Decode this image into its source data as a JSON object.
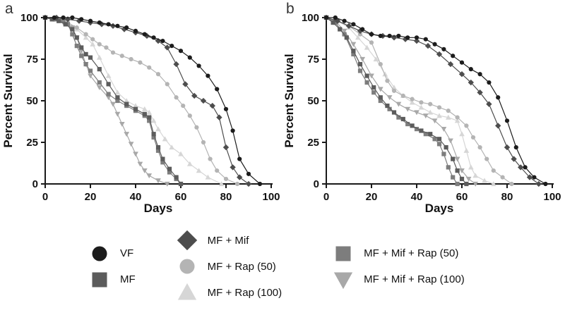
{
  "figure": {
    "panel_labels": [
      "a",
      "b"
    ]
  },
  "chart_data": [
    {
      "type": "line",
      "panel": "a",
      "xlabel": "Days",
      "ylabel": "Percent Survival",
      "xlim": [
        0,
        100
      ],
      "ylim": [
        0,
        100
      ],
      "xticks": [
        0,
        20,
        40,
        60,
        80,
        100
      ],
      "yticks": [
        0,
        25,
        50,
        75,
        100
      ],
      "grid": false,
      "series": [
        {
          "name": "VF",
          "marker": "circle",
          "color": "#1c1c1c",
          "x": [
            0,
            4,
            8,
            12,
            16,
            20,
            24,
            28,
            32,
            36,
            40,
            44,
            48,
            52,
            56,
            60,
            64,
            68,
            72,
            76,
            80,
            83,
            86,
            90,
            95
          ],
          "y": [
            100,
            100,
            100,
            100,
            99,
            98,
            97,
            96,
            95,
            94,
            92,
            90,
            88,
            86,
            83,
            80,
            76,
            71,
            65,
            57,
            45,
            32,
            15,
            6,
            0
          ]
        },
        {
          "name": "MF",
          "marker": "square",
          "color": "#5c5c5c",
          "x": [
            0,
            3,
            6,
            9,
            12,
            14,
            16,
            18,
            20,
            24,
            28,
            32,
            36,
            40,
            44,
            46,
            48,
            50,
            52,
            55,
            58,
            60
          ],
          "y": [
            100,
            99,
            98,
            96,
            93,
            88,
            82,
            78,
            76,
            69,
            60,
            52,
            48,
            45,
            42,
            40,
            30,
            22,
            15,
            9,
            4,
            0
          ]
        },
        {
          "name": "MF + Mif",
          "marker": "diamond",
          "color": "#4d4d4d",
          "x": [
            0,
            5,
            10,
            15,
            20,
            25,
            30,
            35,
            40,
            45,
            50,
            54,
            58,
            62,
            66,
            70,
            74,
            77,
            80,
            83,
            86,
            90
          ],
          "y": [
            100,
            100,
            99,
            98,
            97,
            96,
            95,
            93,
            91,
            89,
            86,
            82,
            72,
            60,
            53,
            50,
            47,
            40,
            22,
            10,
            4,
            0
          ]
        },
        {
          "name": "MF + Rap (50)",
          "marker": "circle",
          "color": "#b4b4b4",
          "x": [
            0,
            5,
            10,
            14,
            18,
            21,
            24,
            27,
            30,
            34,
            38,
            42,
            46,
            50,
            54,
            58,
            61,
            64,
            67,
            70,
            73,
            76,
            80,
            85
          ],
          "y": [
            100,
            99,
            97,
            94,
            90,
            87,
            84,
            82,
            79,
            77,
            75,
            73,
            70,
            66,
            60,
            52,
            47,
            41,
            34,
            25,
            15,
            8,
            3,
            0
          ]
        },
        {
          "name": "MF + Rap (100)",
          "marker": "triangle-up",
          "color": "#d6d6d6",
          "x": [
            0,
            5,
            10,
            14,
            18,
            21,
            24,
            28,
            32,
            36,
            40,
            44,
            46,
            48,
            50,
            53,
            56,
            60,
            64,
            68,
            72,
            78
          ],
          "y": [
            100,
            99,
            97,
            93,
            88,
            84,
            76,
            65,
            55,
            50,
            47,
            45,
            43,
            38,
            33,
            27,
            22,
            18,
            12,
            8,
            4,
            0
          ]
        },
        {
          "name": "MF + Mif + Rap (50)",
          "marker": "square",
          "color": "#7d7d7d",
          "x": [
            0,
            4,
            8,
            10,
            12,
            14,
            16,
            18,
            20,
            24,
            28,
            32,
            36,
            40,
            44,
            46,
            48,
            50,
            52,
            55,
            58,
            60
          ],
          "y": [
            100,
            99,
            98,
            96,
            90,
            83,
            77,
            72,
            68,
            61,
            54,
            50,
            47,
            44,
            41,
            38,
            28,
            20,
            13,
            7,
            3,
            0
          ]
        },
        {
          "name": "MF + Mif + Rap (100)",
          "marker": "triangle-down",
          "color": "#a8a8a8",
          "x": [
            0,
            4,
            8,
            12,
            14,
            16,
            18,
            20,
            24,
            28,
            30,
            32,
            34,
            36,
            38,
            40,
            42,
            44,
            46,
            50,
            54
          ],
          "y": [
            100,
            99,
            97,
            94,
            88,
            80,
            72,
            65,
            58,
            52,
            48,
            42,
            36,
            30,
            24,
            18,
            12,
            8,
            5,
            2,
            0
          ]
        }
      ]
    },
    {
      "type": "line",
      "panel": "b",
      "xlabel": "Days",
      "ylabel": "Percent Survival",
      "xlim": [
        0,
        100
      ],
      "ylim": [
        0,
        100
      ],
      "xticks": [
        0,
        20,
        40,
        60,
        80,
        100
      ],
      "yticks": [
        0,
        25,
        50,
        75,
        100
      ],
      "grid": false,
      "series": [
        {
          "name": "VF",
          "marker": "circle",
          "color": "#1c1c1c",
          "x": [
            0,
            4,
            8,
            12,
            16,
            20,
            24,
            28,
            32,
            36,
            40,
            44,
            48,
            52,
            56,
            60,
            64,
            68,
            72,
            76,
            80,
            84,
            88,
            92,
            97
          ],
          "y": [
            100,
            100,
            98,
            96,
            93,
            90,
            89,
            89,
            89,
            88,
            88,
            87,
            84,
            81,
            77,
            73,
            69,
            66,
            61,
            52,
            38,
            22,
            10,
            4,
            0
          ]
        },
        {
          "name": "MF",
          "marker": "square",
          "color": "#5c5c5c",
          "x": [
            0,
            3,
            6,
            9,
            12,
            15,
            18,
            21,
            24,
            27,
            30,
            34,
            38,
            42,
            46,
            50,
            53,
            56,
            58,
            60,
            62
          ],
          "y": [
            100,
            97,
            93,
            88,
            80,
            72,
            65,
            58,
            52,
            47,
            43,
            39,
            35,
            32,
            30,
            27,
            22,
            15,
            8,
            3,
            0
          ]
        },
        {
          "name": "MF + Mif",
          "marker": "diamond",
          "color": "#4d4d4d",
          "x": [
            0,
            5,
            10,
            15,
            20,
            25,
            30,
            35,
            40,
            45,
            50,
            55,
            60,
            64,
            68,
            72,
            76,
            80,
            83,
            86,
            90,
            94
          ],
          "y": [
            100,
            98,
            95,
            92,
            90,
            89,
            88,
            87,
            86,
            83,
            78,
            72,
            66,
            61,
            55,
            48,
            35,
            22,
            15,
            10,
            4,
            0
          ]
        },
        {
          "name": "MF + Rap (50)",
          "marker": "circle",
          "color": "#b4b4b4",
          "x": [
            0,
            5,
            10,
            15,
            20,
            24,
            27,
            30,
            34,
            38,
            42,
            46,
            50,
            54,
            58,
            62,
            65,
            68,
            71,
            74,
            78,
            82
          ],
          "y": [
            100,
            98,
            95,
            90,
            85,
            72,
            62,
            56,
            53,
            51,
            49,
            48,
            46,
            44,
            40,
            35,
            28,
            22,
            15,
            8,
            4,
            0
          ]
        },
        {
          "name": "MF + Rap (100)",
          "marker": "triangle-up",
          "color": "#d6d6d6",
          "x": [
            0,
            5,
            10,
            14,
            18,
            22,
            26,
            30,
            34,
            38,
            42,
            46,
            50,
            54,
            58,
            60,
            62,
            64,
            66,
            70,
            74
          ],
          "y": [
            100,
            98,
            94,
            88,
            82,
            75,
            66,
            58,
            53,
            49,
            46,
            43,
            41,
            40,
            38,
            30,
            20,
            10,
            5,
            2,
            0
          ]
        },
        {
          "name": "MF + Mif + Rap (50)",
          "marker": "square",
          "color": "#7d7d7d",
          "x": [
            0,
            4,
            8,
            12,
            15,
            18,
            21,
            24,
            28,
            32,
            36,
            40,
            44,
            48,
            50,
            52,
            54,
            56,
            58
          ],
          "y": [
            100,
            97,
            90,
            78,
            68,
            61,
            55,
            50,
            45,
            40,
            36,
            33,
            30,
            27,
            24,
            18,
            10,
            4,
            0
          ]
        },
        {
          "name": "MF + Mif + Rap (100)",
          "marker": "triangle-down",
          "color": "#a8a8a8",
          "x": [
            0,
            4,
            8,
            12,
            16,
            20,
            24,
            28,
            32,
            36,
            40,
            44,
            48,
            52,
            55,
            58,
            60,
            63,
            66
          ],
          "y": [
            100,
            98,
            92,
            84,
            75,
            65,
            57,
            52,
            48,
            45,
            43,
            41,
            38,
            33,
            26,
            15,
            8,
            3,
            0
          ]
        }
      ]
    }
  ],
  "legend": {
    "columns": [
      {
        "items": [
          {
            "label": "VF",
            "marker": "circle",
            "color": "#1c1c1c"
          },
          {
            "label": "MF",
            "marker": "square",
            "color": "#5c5c5c"
          }
        ]
      },
      {
        "items": [
          {
            "label": "MF + Mif",
            "marker": "diamond",
            "color": "#4d4d4d"
          },
          {
            "label": "MF + Rap (50)",
            "marker": "circle",
            "color": "#b4b4b4"
          },
          {
            "label": "MF + Rap (100)",
            "marker": "triangle-up",
            "color": "#d6d6d6"
          }
        ]
      },
      {
        "items": [
          {
            "label": "MF + Mif + Rap (50)",
            "marker": "square",
            "color": "#7d7d7d"
          },
          {
            "label": "MF + Mif + Rap (100)",
            "marker": "triangle-down",
            "color": "#a8a8a8"
          }
        ]
      }
    ]
  }
}
